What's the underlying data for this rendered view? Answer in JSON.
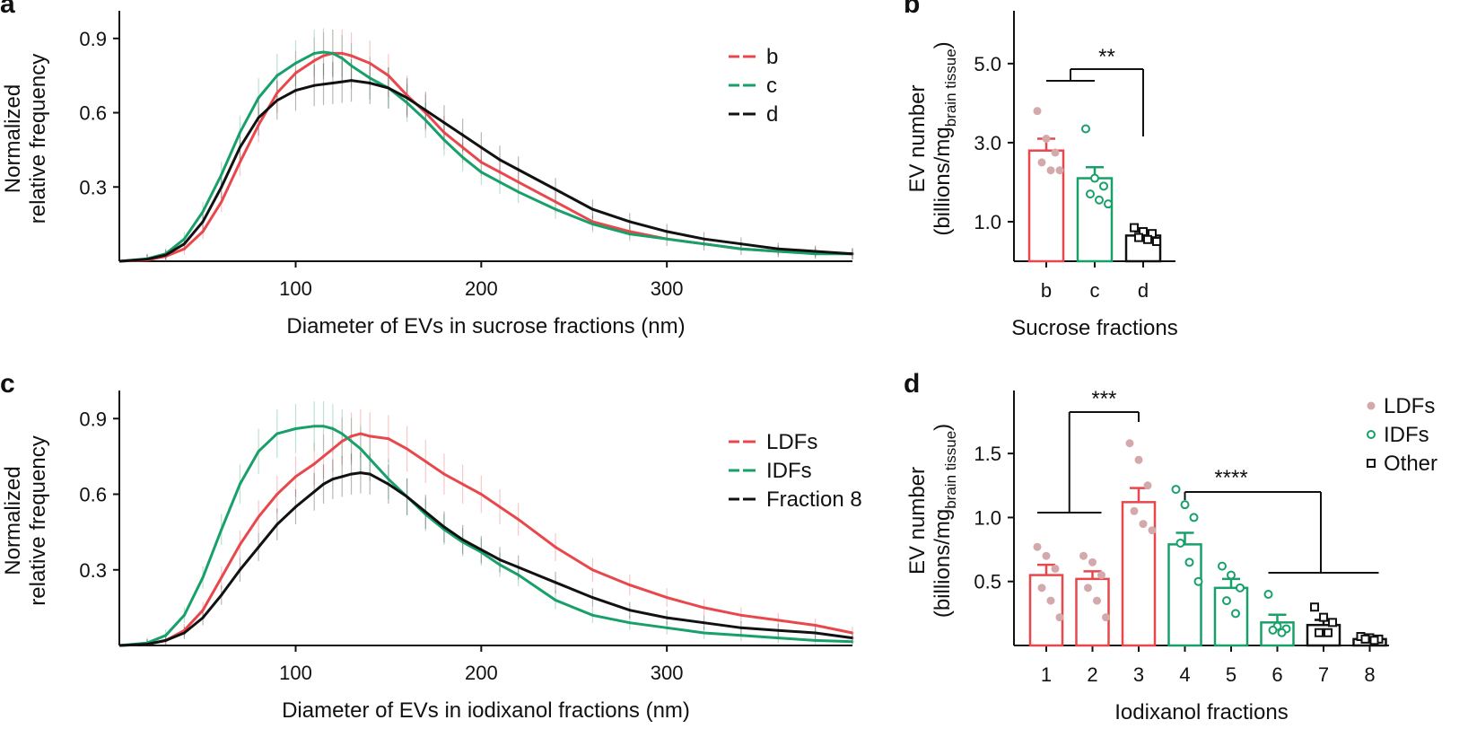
{
  "colors": {
    "red": "#e8474c",
    "green": "#18a06a",
    "black": "#111111",
    "pink": "#d4a9ab"
  },
  "chart_data": [
    {
      "panel": "a",
      "type": "line",
      "xlabel": "Diameter of EVs in sucrose fractions (nm)",
      "ylabel": [
        "Normalized",
        "relative frequency"
      ],
      "xlim": [
        5,
        400
      ],
      "ylim": [
        0,
        0.99
      ],
      "xticks": [
        100,
        200,
        300
      ],
      "yticks": [
        0.3,
        0.6,
        0.9
      ],
      "xtick_labels": [
        "100",
        "200",
        "300"
      ],
      "ytick_labels": [
        "0.3",
        "0.6",
        "0.9"
      ],
      "legend": [
        "b",
        "c",
        "d"
      ],
      "legend_position": "top-right",
      "x": [
        5,
        20,
        30,
        40,
        50,
        60,
        70,
        80,
        90,
        100,
        110,
        115,
        120,
        125,
        130,
        140,
        150,
        160,
        170,
        180,
        190,
        200,
        210,
        220,
        240,
        260,
        280,
        300,
        320,
        340,
        360,
        380,
        400
      ],
      "series": [
        {
          "name": "b",
          "color": "red",
          "values": [
            0,
            0.005,
            0.02,
            0.05,
            0.12,
            0.24,
            0.4,
            0.55,
            0.68,
            0.76,
            0.81,
            0.83,
            0.84,
            0.84,
            0.83,
            0.8,
            0.75,
            0.67,
            0.6,
            0.52,
            0.46,
            0.4,
            0.36,
            0.32,
            0.24,
            0.16,
            0.12,
            0.09,
            0.07,
            0.05,
            0.04,
            0.035,
            0.03
          ]
        },
        {
          "name": "c",
          "color": "green",
          "values": [
            0,
            0.01,
            0.03,
            0.09,
            0.2,
            0.35,
            0.52,
            0.66,
            0.75,
            0.8,
            0.84,
            0.845,
            0.84,
            0.82,
            0.79,
            0.74,
            0.7,
            0.64,
            0.57,
            0.49,
            0.42,
            0.36,
            0.32,
            0.28,
            0.21,
            0.15,
            0.11,
            0.09,
            0.07,
            0.05,
            0.04,
            0.03,
            0.03
          ]
        },
        {
          "name": "d",
          "color": "black",
          "values": [
            0,
            0.008,
            0.025,
            0.07,
            0.16,
            0.3,
            0.46,
            0.58,
            0.65,
            0.69,
            0.71,
            0.715,
            0.72,
            0.725,
            0.73,
            0.72,
            0.7,
            0.66,
            0.61,
            0.56,
            0.51,
            0.46,
            0.41,
            0.37,
            0.29,
            0.21,
            0.16,
            0.12,
            0.09,
            0.07,
            0.05,
            0.04,
            0.03
          ]
        }
      ]
    },
    {
      "panel": "b",
      "type": "bar",
      "xlabel": "Sucrose fractions",
      "ylabel": "EV number",
      "ylabel_unit": {
        "prefix": "(billions/mg",
        "sub": "brain tissue",
        "suffix": ")"
      },
      "ylim": [
        0,
        6.2
      ],
      "yticks": [
        1.0,
        3.0,
        5.0
      ],
      "ytick_labels": [
        "1.0",
        "3.0",
        "5.0"
      ],
      "categories": [
        "b",
        "c",
        "d"
      ],
      "values": [
        2.8,
        2.1,
        0.65
      ],
      "errors": [
        0.3,
        0.28,
        0.1
      ],
      "bar_colors": [
        "red",
        "green",
        "black"
      ],
      "points": [
        [
          3.8,
          3.1,
          2.75,
          2.5,
          2.3,
          2.3
        ],
        [
          3.35,
          2.1,
          1.9,
          1.7,
          1.55,
          1.45
        ],
        [
          0.85,
          0.75,
          0.7,
          0.6,
          0.55,
          0.5
        ]
      ],
      "significance": [
        {
          "label": "**",
          "groups": [
            "b,c",
            "d"
          ]
        }
      ]
    },
    {
      "panel": "c",
      "type": "line",
      "xlabel": "Diameter of EVs in iodixanol fractions (nm)",
      "ylabel": [
        "Normalized",
        "relative frequency"
      ],
      "xlim": [
        5,
        400
      ],
      "ylim": [
        0,
        0.99
      ],
      "xticks": [
        100,
        200,
        300
      ],
      "yticks": [
        0.3,
        0.6,
        0.9
      ],
      "xtick_labels": [
        "100",
        "200",
        "300"
      ],
      "ytick_labels": [
        "0.3",
        "0.6",
        "0.9"
      ],
      "legend": [
        "LDFs",
        "IDFs",
        "Fraction 8"
      ],
      "legend_position": "top-right",
      "x": [
        5,
        20,
        30,
        40,
        50,
        60,
        70,
        80,
        90,
        100,
        110,
        115,
        120,
        125,
        130,
        135,
        140,
        150,
        160,
        170,
        180,
        190,
        200,
        210,
        220,
        240,
        260,
        280,
        300,
        320,
        340,
        360,
        380,
        400
      ],
      "series": [
        {
          "name": "LDFs",
          "color": "red",
          "values": [
            0,
            0.005,
            0.02,
            0.06,
            0.14,
            0.27,
            0.4,
            0.51,
            0.6,
            0.67,
            0.72,
            0.75,
            0.78,
            0.81,
            0.83,
            0.84,
            0.83,
            0.82,
            0.78,
            0.73,
            0.68,
            0.64,
            0.6,
            0.55,
            0.5,
            0.39,
            0.3,
            0.24,
            0.19,
            0.15,
            0.12,
            0.1,
            0.08,
            0.05
          ]
        },
        {
          "name": "IDFs",
          "color": "green",
          "values": [
            0,
            0.01,
            0.04,
            0.12,
            0.27,
            0.46,
            0.64,
            0.77,
            0.84,
            0.86,
            0.87,
            0.87,
            0.86,
            0.84,
            0.81,
            0.78,
            0.74,
            0.66,
            0.59,
            0.52,
            0.46,
            0.41,
            0.37,
            0.32,
            0.28,
            0.18,
            0.12,
            0.09,
            0.07,
            0.05,
            0.04,
            0.03,
            0.02,
            0.015
          ]
        },
        {
          "name": "Fraction 8",
          "color": "black",
          "values": [
            0,
            0.005,
            0.02,
            0.05,
            0.11,
            0.2,
            0.3,
            0.39,
            0.48,
            0.55,
            0.61,
            0.64,
            0.66,
            0.67,
            0.68,
            0.685,
            0.68,
            0.64,
            0.59,
            0.53,
            0.47,
            0.42,
            0.38,
            0.34,
            0.31,
            0.25,
            0.19,
            0.14,
            0.11,
            0.09,
            0.07,
            0.06,
            0.05,
            0.03
          ]
        }
      ]
    },
    {
      "panel": "d",
      "type": "bar",
      "xlabel": "Iodixanol fractions",
      "ylabel": "EV number",
      "ylabel_unit": {
        "prefix": "(billions/mg",
        "sub": "brain tissue",
        "suffix": ")"
      },
      "ylim": [
        0,
        1.95
      ],
      "yticks": [
        0.5,
        1.0,
        1.5
      ],
      "ytick_labels": [
        "0.5",
        "1.0",
        "1.5"
      ],
      "categories": [
        "1",
        "2",
        "3",
        "4",
        "5",
        "6",
        "7",
        "8"
      ],
      "values": [
        0.55,
        0.52,
        1.12,
        0.79,
        0.45,
        0.18,
        0.16,
        0.05
      ],
      "errors": [
        0.08,
        0.06,
        0.11,
        0.09,
        0.07,
        0.06,
        0.04,
        0.02
      ],
      "bar_colors": [
        "red",
        "red",
        "red",
        "green",
        "green",
        "green",
        "black",
        "black"
      ],
      "markers": [
        "dot",
        "dot",
        "dot",
        "circle",
        "circle",
        "circle",
        "square",
        "square"
      ],
      "points": [
        [
          0.77,
          0.7,
          0.6,
          0.45,
          0.35,
          0.22
        ],
        [
          0.7,
          0.65,
          0.55,
          0.45,
          0.35,
          0.22
        ],
        [
          1.58,
          1.45,
          1.25,
          1.05,
          0.95,
          0.9
        ],
        [
          1.22,
          1.1,
          1.0,
          0.8,
          0.65,
          0.5
        ],
        [
          0.62,
          0.55,
          0.45,
          0.35,
          0.25
        ],
        [
          0.4,
          0.15,
          0.13,
          0.12,
          0.1
        ],
        [
          0.3,
          0.22,
          0.18,
          0.1,
          0.1
        ],
        [
          0.07,
          0.06,
          0.05,
          0.05,
          0.04
        ]
      ],
      "legend": [
        "LDFs",
        "IDFs",
        "Other"
      ],
      "legend_position": "top-right",
      "significance": [
        {
          "label": "***",
          "groups": [
            "1,2",
            "3"
          ]
        },
        {
          "label": "****",
          "groups": [
            "4",
            "6,7,8"
          ]
        }
      ]
    }
  ]
}
